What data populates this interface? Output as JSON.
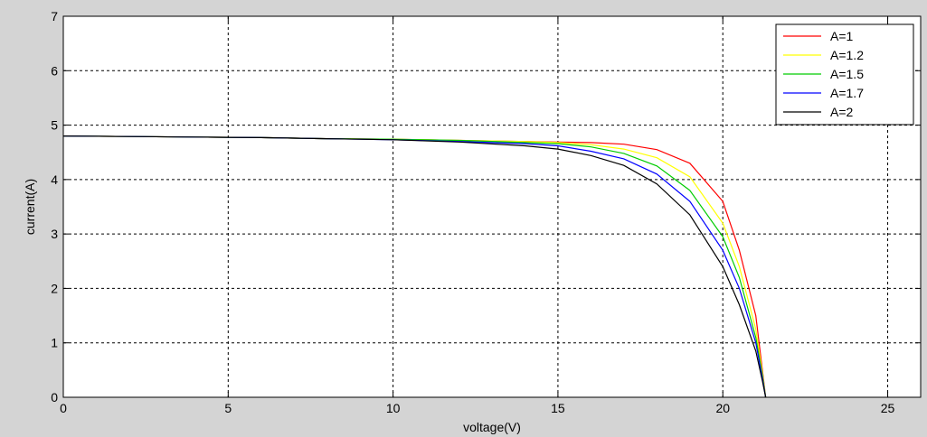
{
  "chart_data": {
    "type": "line",
    "title": "",
    "xlabel": "voltage(V)",
    "ylabel": "current(A)",
    "xlim": [
      0,
      26
    ],
    "ylim": [
      0,
      7
    ],
    "xticks": [
      0,
      5,
      10,
      15,
      20,
      25
    ],
    "yticks": [
      0,
      1,
      2,
      3,
      4,
      5,
      6,
      7
    ],
    "grid": true,
    "legend_position": "top-right",
    "series": [
      {
        "name": "A=1",
        "color": "#ff0000",
        "x": [
          0,
          2,
          4,
          6,
          8,
          10,
          12,
          14,
          15,
          16,
          17,
          18,
          19,
          20,
          20.5,
          21,
          21.2,
          21.3
        ],
        "y": [
          4.8,
          4.79,
          4.78,
          4.77,
          4.75,
          4.74,
          4.72,
          4.7,
          4.69,
          4.68,
          4.65,
          4.55,
          4.3,
          3.6,
          2.7,
          1.5,
          0.5,
          0
        ]
      },
      {
        "name": "A=1.2",
        "color": "#ffff00",
        "x": [
          0,
          2,
          4,
          6,
          8,
          10,
          12,
          14,
          15,
          16,
          17,
          18,
          19,
          20,
          20.5,
          21,
          21.2,
          21.3
        ],
        "y": [
          4.8,
          4.79,
          4.78,
          4.77,
          4.75,
          4.74,
          4.72,
          4.7,
          4.68,
          4.64,
          4.56,
          4.4,
          4.05,
          3.2,
          2.4,
          1.25,
          0.45,
          0
        ]
      },
      {
        "name": "A=1.5",
        "color": "#00cc00",
        "x": [
          0,
          2,
          4,
          6,
          8,
          10,
          12,
          14,
          15,
          16,
          17,
          18,
          19,
          20,
          20.5,
          21,
          21.2,
          21.3
        ],
        "y": [
          4.8,
          4.79,
          4.78,
          4.77,
          4.75,
          4.74,
          4.72,
          4.68,
          4.66,
          4.6,
          4.48,
          4.25,
          3.8,
          2.95,
          2.2,
          1.1,
          0.4,
          0
        ]
      },
      {
        "name": "A=1.7",
        "color": "#0000ff",
        "x": [
          0,
          2,
          4,
          6,
          8,
          10,
          12,
          14,
          15,
          16,
          17,
          18,
          19,
          20,
          20.5,
          21,
          21.2,
          21.3
        ],
        "y": [
          4.8,
          4.79,
          4.78,
          4.77,
          4.75,
          4.73,
          4.7,
          4.66,
          4.62,
          4.52,
          4.38,
          4.1,
          3.6,
          2.7,
          2.0,
          1.0,
          0.35,
          0
        ]
      },
      {
        "name": "A=2",
        "color": "#000000",
        "x": [
          0,
          2,
          4,
          6,
          8,
          10,
          12,
          14,
          15,
          16,
          17,
          18,
          19,
          20,
          20.5,
          21,
          21.2,
          21.3
        ],
        "y": [
          4.8,
          4.79,
          4.78,
          4.77,
          4.75,
          4.73,
          4.69,
          4.62,
          4.56,
          4.44,
          4.26,
          3.92,
          3.35,
          2.4,
          1.7,
          0.85,
          0.3,
          0
        ]
      }
    ]
  }
}
